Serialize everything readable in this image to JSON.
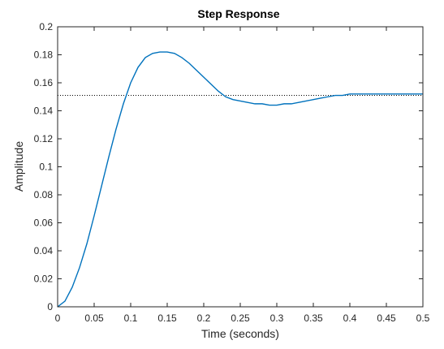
{
  "chart_data": {
    "type": "line",
    "title": "Step Response",
    "xlabel": "Time (seconds)",
    "ylabel": "Amplitude",
    "xlim": [
      0,
      0.5
    ],
    "ylim": [
      0,
      0.2
    ],
    "x_ticks": [
      0,
      0.05,
      0.1,
      0.15,
      0.2,
      0.25,
      0.3,
      0.35,
      0.4,
      0.45,
      0.5
    ],
    "x_tick_labels": [
      "0",
      "0.05",
      "0.1",
      "0.15",
      "0.2",
      "0.25",
      "0.3",
      "0.35",
      "0.4",
      "0.45",
      "0.5"
    ],
    "y_ticks": [
      0,
      0.02,
      0.04,
      0.06,
      0.08,
      0.1,
      0.12,
      0.14,
      0.16,
      0.18,
      0.2
    ],
    "y_tick_labels": [
      "0",
      "0.02",
      "0.04",
      "0.06",
      "0.08",
      "0.1",
      "0.12",
      "0.14",
      "0.16",
      "0.18",
      "0.2"
    ],
    "grid": false,
    "series": [
      {
        "color": "#0072bd",
        "x": [
          0,
          0.01,
          0.02,
          0.03,
          0.04,
          0.05,
          0.06,
          0.07,
          0.08,
          0.09,
          0.1,
          0.11,
          0.12,
          0.13,
          0.14,
          0.15,
          0.16,
          0.17,
          0.18,
          0.19,
          0.2,
          0.21,
          0.22,
          0.23,
          0.24,
          0.25,
          0.26,
          0.27,
          0.28,
          0.29,
          0.3,
          0.31,
          0.32,
          0.33,
          0.34,
          0.35,
          0.36,
          0.37,
          0.38,
          0.39,
          0.4,
          0.41,
          0.42,
          0.43,
          0.44,
          0.45,
          0.46,
          0.47,
          0.48,
          0.49,
          0.5
        ],
        "y": [
          0,
          0.004,
          0.014,
          0.028,
          0.045,
          0.065,
          0.086,
          0.107,
          0.127,
          0.145,
          0.16,
          0.171,
          0.178,
          0.181,
          0.182,
          0.182,
          0.181,
          0.178,
          0.174,
          0.169,
          0.164,
          0.159,
          0.154,
          0.15,
          0.148,
          0.147,
          0.146,
          0.145,
          0.145,
          0.144,
          0.144,
          0.145,
          0.145,
          0.146,
          0.147,
          0.148,
          0.149,
          0.15,
          0.151,
          0.151,
          0.152,
          0.152,
          0.152,
          0.152,
          0.152,
          0.152,
          0.152,
          0.152,
          0.152,
          0.152,
          0.152
        ]
      }
    ],
    "reference_line": {
      "y": 0.151,
      "style": "dotted",
      "color": "#000000"
    }
  }
}
